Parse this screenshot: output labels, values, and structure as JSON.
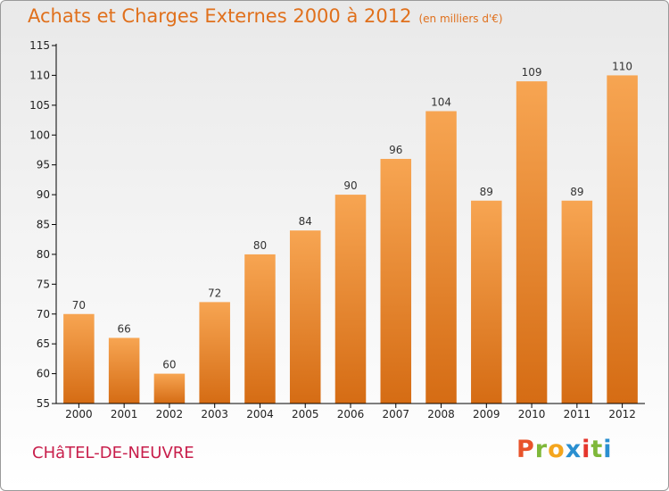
{
  "header": {
    "title": "Achats et Charges Externes 2000 à 2012",
    "unit": "(en milliers d'€)"
  },
  "footer": {
    "place": "CHâTEL-DE-NEUVRE",
    "logo": "Proxiti",
    "logo_colors": [
      "#e8532a",
      "#7fb83a",
      "#f4a51d",
      "#2a8fd0",
      "#e5352c",
      "#7fb83a",
      "#2a8fd0"
    ]
  },
  "chart_data": {
    "type": "bar",
    "categories": [
      "2000",
      "2001",
      "2002",
      "2003",
      "2004",
      "2005",
      "2006",
      "2007",
      "2008",
      "2009",
      "2010",
      "2011",
      "2012"
    ],
    "values": [
      70,
      66,
      60,
      72,
      80,
      84,
      90,
      96,
      104,
      89,
      109,
      89,
      110
    ],
    "title": "Achats et Charges Externes 2000 à 2012",
    "ylim": [
      55,
      115
    ],
    "yticks": [
      55,
      60,
      65,
      70,
      75,
      80,
      85,
      90,
      95,
      100,
      105,
      110,
      115
    ],
    "grid": false,
    "colors": {
      "bar_top": "#f7a552",
      "bar_bottom": "#d56c14",
      "axis": "#000000"
    }
  }
}
